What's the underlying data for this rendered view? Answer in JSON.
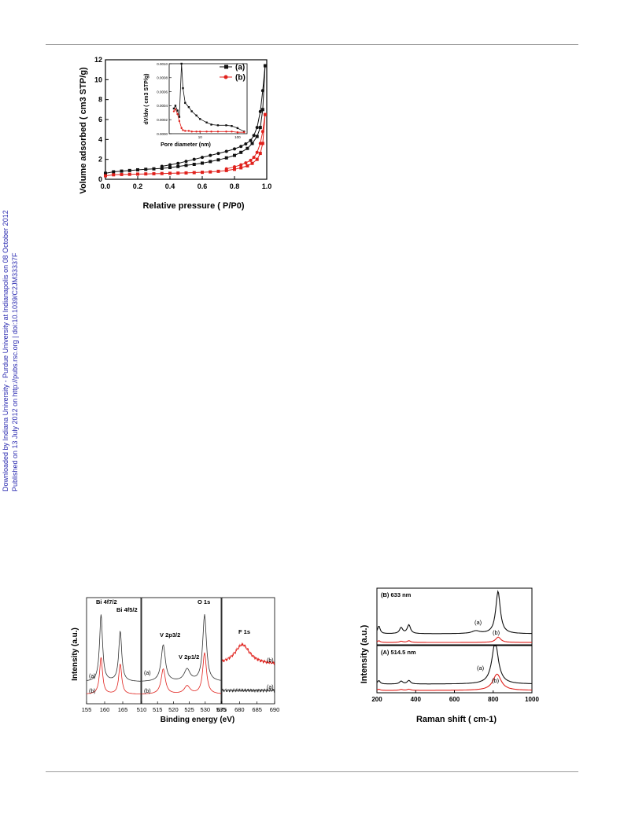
{
  "side_note": {
    "line1": "Downloaded by Indiana University - Purdue University at Indianapolis on 08 October 2012",
    "line2": "Published on 13 July 2012 on http://pubs.rsc.org | doi:10.1039/C2JM33337F"
  },
  "chart_data": [
    {
      "id": "n2-isotherm",
      "type": "scatter",
      "xlabel": "Relative pressure ( P/P0)",
      "ylabel": "Volume adsorbed ( cm3 STP/g)",
      "xlim": [
        0.0,
        1.0
      ],
      "ylim": [
        0,
        12
      ],
      "xticks": [
        "0.0",
        "0.2",
        "0.4",
        "0.6",
        "0.8",
        "1.0"
      ],
      "yticks": [
        "0",
        "2",
        "4",
        "6",
        "8",
        "10",
        "12"
      ],
      "legend": [
        "(a)",
        "(b)"
      ],
      "legend_position": "top-right",
      "colors": {
        "a": "#111111",
        "b": "#e0211c"
      },
      "series": [
        {
          "name": "(a)",
          "adsorption": {
            "x": [
              0.0,
              0.05,
              0.1,
              0.15,
              0.2,
              0.25,
              0.3,
              0.35,
              0.4,
              0.45,
              0.5,
              0.55,
              0.6,
              0.65,
              0.7,
              0.75,
              0.8,
              0.84,
              0.88,
              0.91,
              0.94,
              0.96,
              0.975,
              0.99
            ],
            "y": [
              0.6,
              0.75,
              0.82,
              0.88,
              0.95,
              1.0,
              1.05,
              1.1,
              1.18,
              1.28,
              1.4,
              1.5,
              1.62,
              1.78,
              1.95,
              2.15,
              2.4,
              2.7,
              3.1,
              3.6,
              4.3,
              5.2,
              7.0,
              11.4
            ]
          },
          "desorption": {
            "x": [
              0.99,
              0.975,
              0.96,
              0.94,
              0.92,
              0.9,
              0.87,
              0.84,
              0.8,
              0.75,
              0.7,
              0.65,
              0.6,
              0.55,
              0.5,
              0.45,
              0.4,
              0.35
            ],
            "y": [
              11.4,
              8.9,
              6.8,
              5.2,
              4.4,
              3.9,
              3.55,
              3.3,
              3.05,
              2.8,
              2.6,
              2.4,
              2.2,
              2.0,
              1.8,
              1.6,
              1.45,
              1.3
            ]
          }
        },
        {
          "name": "(b)",
          "adsorption": {
            "x": [
              0.0,
              0.05,
              0.1,
              0.15,
              0.2,
              0.25,
              0.3,
              0.35,
              0.4,
              0.45,
              0.5,
              0.55,
              0.6,
              0.65,
              0.7,
              0.75,
              0.8,
              0.84,
              0.88,
              0.91,
              0.94,
              0.96,
              0.975,
              0.99
            ],
            "y": [
              0.35,
              0.45,
              0.48,
              0.5,
              0.52,
              0.54,
              0.56,
              0.58,
              0.6,
              0.62,
              0.64,
              0.67,
              0.7,
              0.74,
              0.8,
              0.88,
              1.0,
              1.15,
              1.35,
              1.6,
              2.0,
              2.6,
              3.6,
              6.5
            ]
          },
          "desorption": {
            "x": [
              0.99,
              0.975,
              0.96,
              0.94,
              0.92,
              0.9,
              0.87,
              0.84,
              0.8,
              0.75
            ],
            "y": [
              6.5,
              4.8,
              3.6,
              2.7,
              2.2,
              1.9,
              1.65,
              1.45,
              1.25,
              1.05
            ]
          }
        }
      ],
      "inset": {
        "type": "scatter",
        "xlabel": "Pore diameter (nm)",
        "ylabel": "dV/dw ( cm3 STP/g)",
        "x_scale": "log",
        "xlim": [
          1.5,
          180
        ],
        "ylim": [
          0,
          0.001
        ],
        "yticks": [
          "0.0000",
          "0.0002",
          "0.0004",
          "0.0006",
          "0.0008",
          "0.0010"
        ],
        "xticks": [
          "10",
          "100"
        ],
        "series": [
          {
            "name": "(a)",
            "x": [
              2.0,
              2.2,
              2.5,
              2.8,
              3.2,
              3.5,
              4.0,
              5.0,
              6.0,
              8.0,
              10,
              15,
              20,
              30,
              50,
              70,
              100,
              150
            ],
            "y": [
              0.00036,
              0.0004,
              0.00033,
              0.00024,
              0.001,
              0.00065,
              0.00044,
              0.00038,
              0.00032,
              0.00026,
              0.00021,
              0.00016,
              0.00013,
              0.00012,
              0.00012,
              0.00011,
              8e-05,
              3e-05
            ]
          },
          {
            "name": "(b)",
            "x": [
              2.0,
              2.2,
              2.5,
              2.8,
              3.2,
              3.5,
              4.0,
              5.0,
              6.0,
              8.0,
              10,
              15,
              20,
              30,
              50,
              70,
              100,
              150
            ],
            "y": [
              0.00032,
              0.00035,
              0.00028,
              0.00018,
              8e-05,
              5e-05,
              4e-05,
              4e-05,
              3e-05,
              3e-05,
              3e-05,
              3e-05,
              3e-05,
              3e-05,
              3e-05,
              3e-05,
              2e-05,
              2e-05
            ]
          }
        ]
      }
    },
    {
      "id": "xps",
      "type": "line",
      "xlabel": "Binding energy (eV)",
      "ylabel": "Intensity (a.u.)",
      "colors": {
        "a": "#333333",
        "b": "#e0211c"
      },
      "panels": [
        {
          "name": "Bi 4f",
          "xlim": [
            155,
            170
          ],
          "xticks": [
            "155",
            "160",
            "165"
          ],
          "peaks_a": [
            {
              "center": 159.0,
              "height": 1.0,
              "width": 0.5
            },
            {
              "center": 164.3,
              "height": 0.75,
              "width": 0.5
            }
          ],
          "peaks_b": [
            {
              "center": 159.0,
              "height": 0.55,
              "width": 0.5
            },
            {
              "center": 164.3,
              "height": 0.45,
              "width": 0.5
            }
          ],
          "annotations": [
            "Bi 4f7/2",
            "Bi 4f5/2"
          ],
          "series_labels": [
            "(a)",
            "(b)"
          ]
        },
        {
          "name": "V 2p / O 1s",
          "xlim": [
            510,
            535
          ],
          "xticks": [
            "510",
            "515",
            "520",
            "525",
            "530",
            "535"
          ],
          "peaks_a": [
            {
              "center": 516.8,
              "height": 0.55,
              "width": 0.8
            },
            {
              "center": 524.3,
              "height": 0.18,
              "width": 1.1
            },
            {
              "center": 529.8,
              "height": 1.0,
              "width": 0.7
            }
          ],
          "peaks_b": [
            {
              "center": 516.8,
              "height": 0.38,
              "width": 0.8
            },
            {
              "center": 524.3,
              "height": 0.12,
              "width": 1.1
            },
            {
              "center": 529.8,
              "height": 0.62,
              "width": 0.7
            }
          ],
          "annotations": [
            "V 2p3/2",
            "V 2p1/2",
            "O 1s"
          ],
          "series_labels": [
            "(a)",
            "(b)"
          ]
        },
        {
          "name": "F 1s",
          "xlim": [
            675,
            690
          ],
          "xticks": [
            "675",
            "680",
            "685",
            "690"
          ],
          "peaks_a": [],
          "peaks_b": [
            {
              "center": 680.8,
              "height": 0.42,
              "width": 2.6
            }
          ],
          "annotations": [
            "F 1s"
          ],
          "series_labels": [
            "(b)",
            "(a)"
          ]
        }
      ]
    },
    {
      "id": "raman",
      "type": "line",
      "xlabel": "Raman shift ( cm-1)",
      "ylabel": "Intensity (a.u.)",
      "xlim": [
        200,
        1000
      ],
      "xticks": [
        "200",
        "400",
        "600",
        "800",
        "1000"
      ],
      "colors": {
        "a": "#111111",
        "b": "#e0211c"
      },
      "panels": [
        {
          "name": "(B) 633 nm",
          "peaks_a": [
            {
              "center": 210,
              "height": 0.55,
              "width": 8
            },
            {
              "center": 325,
              "height": 0.42,
              "width": 10
            },
            {
              "center": 365,
              "height": 0.62,
              "width": 10
            },
            {
              "center": 710,
              "height": 0.18,
              "width": 25
            },
            {
              "center": 825,
              "height": 3.0,
              "width": 14
            }
          ],
          "peaks_b": [
            {
              "center": 210,
              "height": 0.12,
              "width": 8
            },
            {
              "center": 325,
              "height": 0.08,
              "width": 10
            },
            {
              "center": 365,
              "height": 0.12,
              "width": 10
            },
            {
              "center": 826,
              "height": 0.38,
              "width": 16
            }
          ],
          "series_labels": [
            "(a)",
            "(b)"
          ]
        },
        {
          "name": "(A) 514.5 nm",
          "peaks_a": [
            {
              "center": 210,
              "height": 0.25,
              "width": 8
            },
            {
              "center": 325,
              "height": 0.2,
              "width": 10
            },
            {
              "center": 365,
              "height": 0.25,
              "width": 10
            },
            {
              "center": 810,
              "height": 3.0,
              "width": 20
            }
          ],
          "peaks_b": [
            {
              "center": 210,
              "height": 0.08,
              "width": 8
            },
            {
              "center": 325,
              "height": 0.06,
              "width": 10
            },
            {
              "center": 365,
              "height": 0.08,
              "width": 10
            },
            {
              "center": 820,
              "height": 1.15,
              "width": 26
            }
          ],
          "series_labels": [
            "(a)",
            "(b)"
          ]
        }
      ]
    }
  ]
}
